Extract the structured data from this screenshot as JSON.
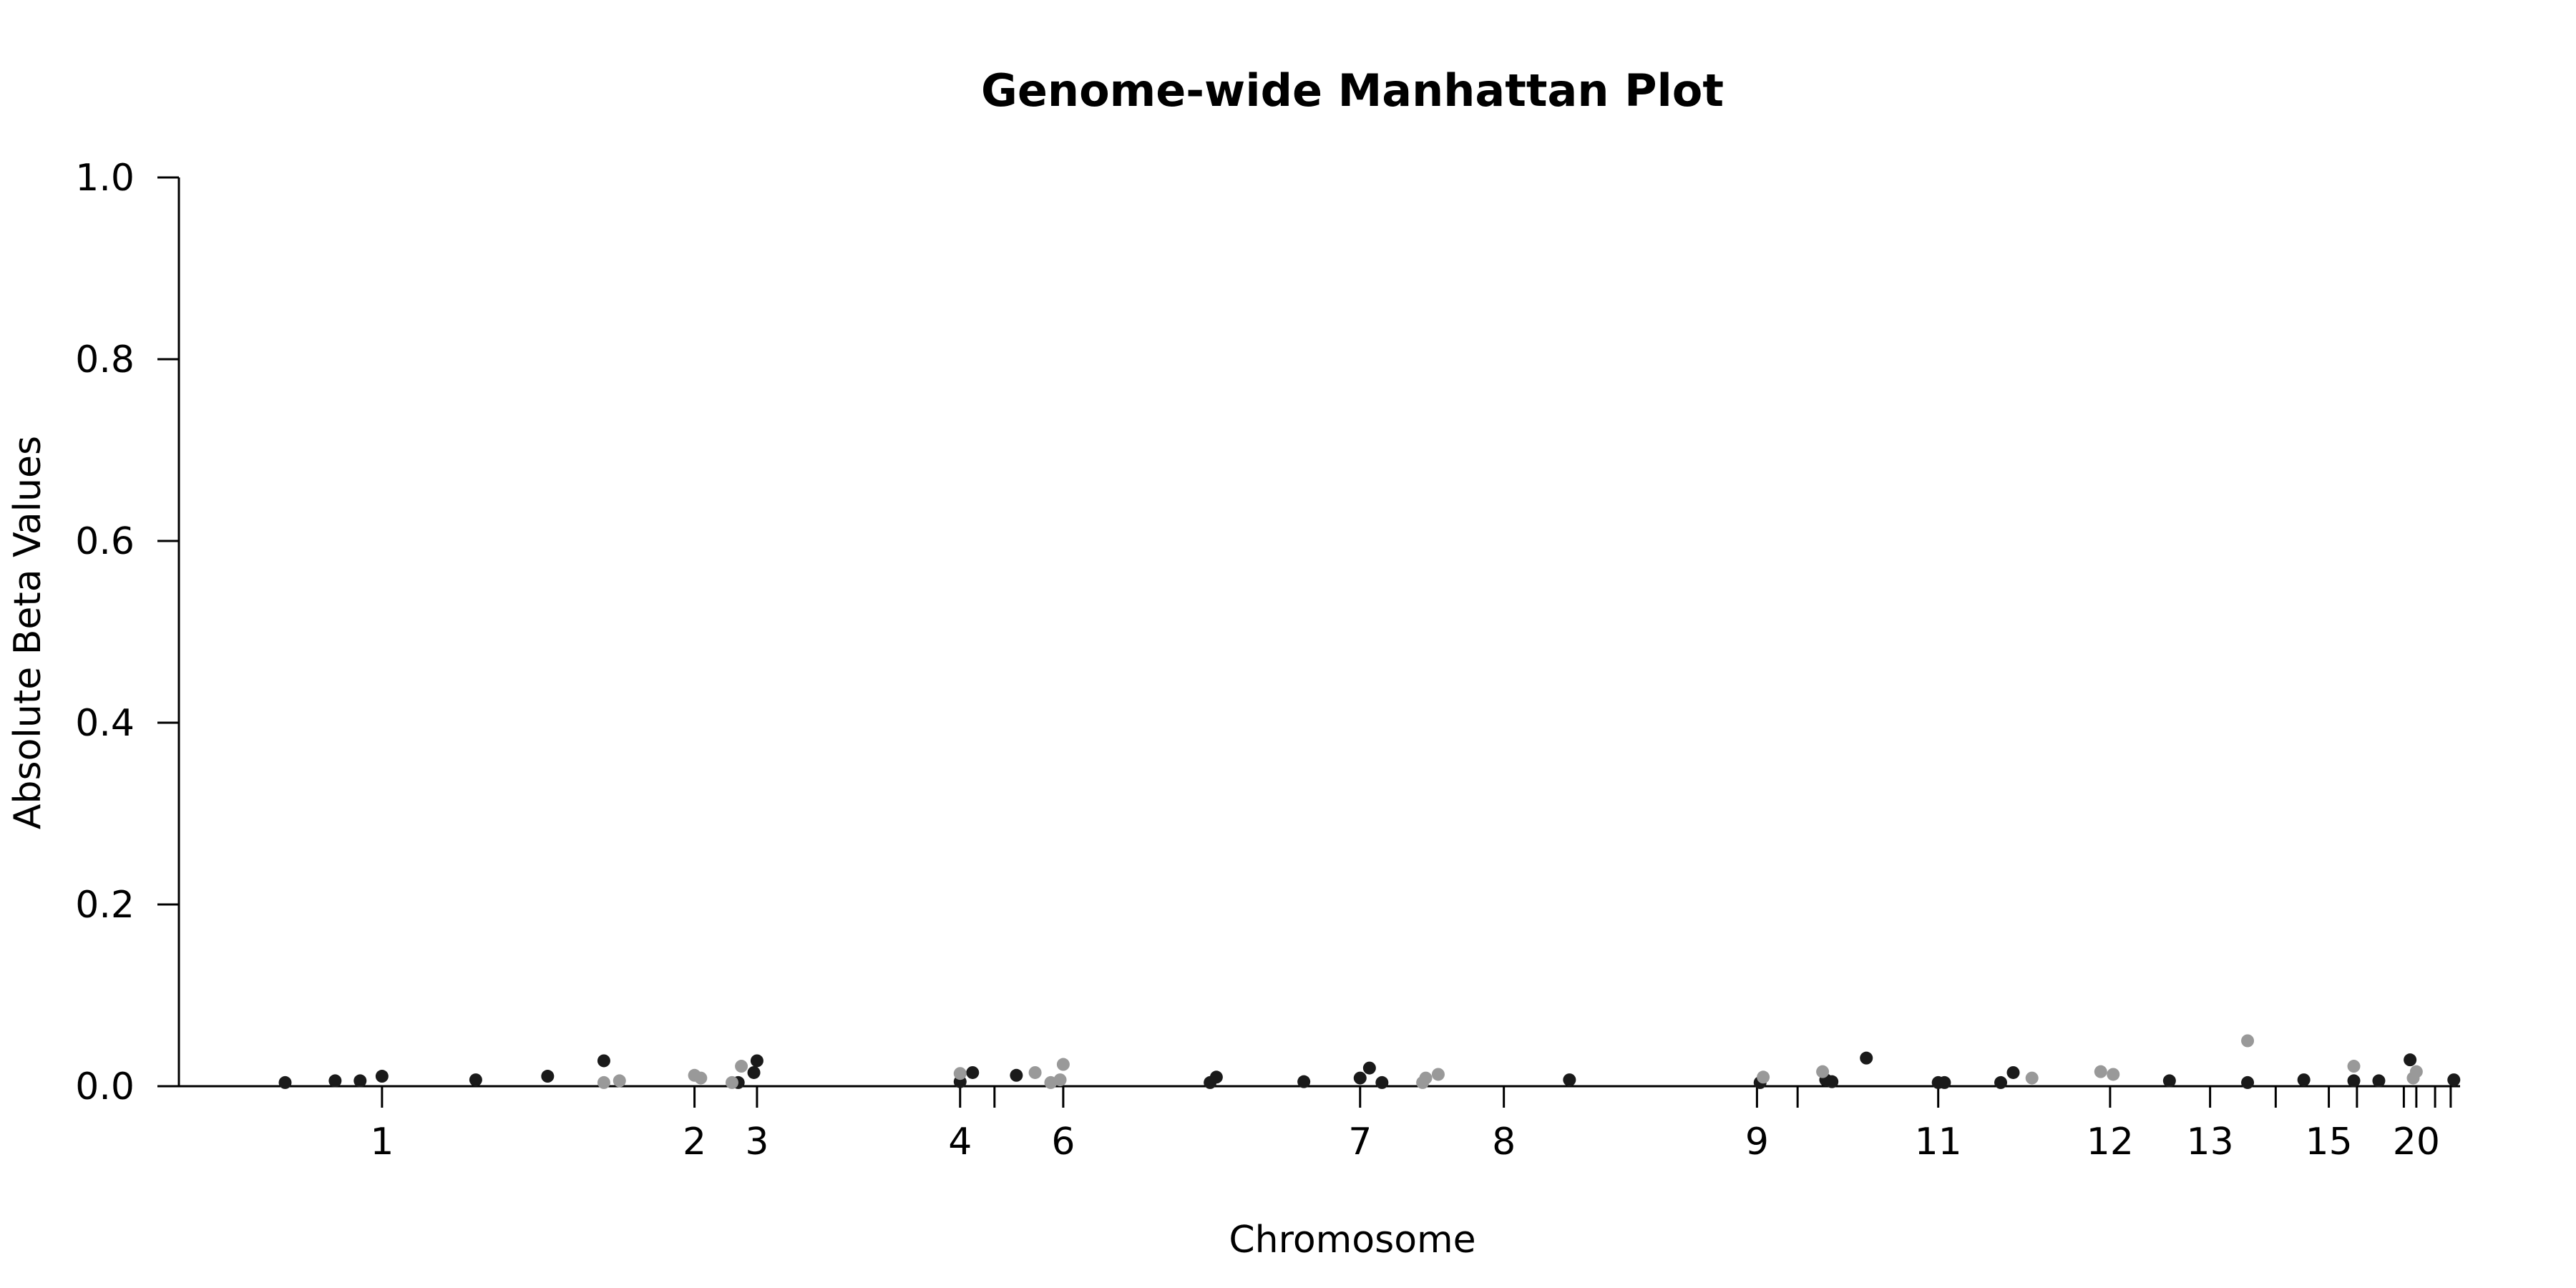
{
  "chart_data": {
    "type": "scatter",
    "title": "Genome-wide Manhattan Plot",
    "xlabel": "Chromosome",
    "ylabel": "Absolute Beta Values",
    "ylim": [
      0,
      1
    ],
    "y_ticks": [
      "0.0",
      "0.2",
      "0.4",
      "0.6",
      "0.8",
      "1.0"
    ],
    "x_ticks": [
      {
        "pos": 1.0,
        "label": "1"
      },
      {
        "pos": 2.0,
        "label": "2"
      },
      {
        "pos": 2.2,
        "label": "3"
      },
      {
        "pos": 2.85,
        "label": "4"
      },
      {
        "pos": 2.96,
        "label": ""
      },
      {
        "pos": 3.18,
        "label": "6"
      },
      {
        "pos": 4.13,
        "label": "7"
      },
      {
        "pos": 4.59,
        "label": "8"
      },
      {
        "pos": 5.4,
        "label": "9"
      },
      {
        "pos": 5.53,
        "label": ""
      },
      {
        "pos": 5.98,
        "label": "11"
      },
      {
        "pos": 6.53,
        "label": "12"
      },
      {
        "pos": 6.85,
        "label": "13"
      },
      {
        "pos": 7.06,
        "label": ""
      },
      {
        "pos": 7.23,
        "label": "15"
      },
      {
        "pos": 7.32,
        "label": ""
      },
      {
        "pos": 7.47,
        "label": ""
      },
      {
        "pos": 7.51,
        "label": "20"
      },
      {
        "pos": 7.57,
        "label": ""
      },
      {
        "pos": 7.62,
        "label": ""
      }
    ],
    "xlim": [
      0.35,
      7.65
    ],
    "grid": false,
    "colors": {
      "dark": "#1a1a1a",
      "light": "#999999"
    },
    "series": [
      {
        "color_key": "dark",
        "points": [
          [
            0.69,
            0.004
          ],
          [
            0.85,
            0.006
          ],
          [
            0.93,
            0.006
          ],
          [
            1.0,
            0.011
          ],
          [
            1.3,
            0.007
          ],
          [
            1.53,
            0.011
          ],
          [
            1.71,
            0.028
          ],
          [
            2.14,
            0.004
          ],
          [
            2.19,
            0.015
          ],
          [
            2.2,
            0.028
          ],
          [
            2.85,
            0.005
          ],
          [
            2.89,
            0.015
          ],
          [
            3.03,
            0.012
          ],
          [
            3.65,
            0.004
          ],
          [
            3.67,
            0.01
          ],
          [
            3.95,
            0.005
          ],
          [
            4.13,
            0.009
          ],
          [
            4.16,
            0.02
          ],
          [
            4.2,
            0.004
          ],
          [
            4.8,
            0.007
          ],
          [
            5.41,
            0.004
          ],
          [
            5.62,
            0.007
          ],
          [
            5.64,
            0.005
          ],
          [
            5.75,
            0.031
          ],
          [
            5.98,
            0.004
          ],
          [
            6.0,
            0.004
          ],
          [
            6.18,
            0.004
          ],
          [
            6.22,
            0.015
          ],
          [
            6.72,
            0.006
          ],
          [
            6.97,
            0.004
          ],
          [
            7.15,
            0.007
          ],
          [
            7.31,
            0.006
          ],
          [
            7.39,
            0.006
          ],
          [
            7.49,
            0.029
          ],
          [
            7.63,
            0.007
          ]
        ]
      },
      {
        "color_key": "light",
        "points": [
          [
            1.71,
            0.004
          ],
          [
            1.76,
            0.006
          ],
          [
            2.0,
            0.012
          ],
          [
            2.02,
            0.009
          ],
          [
            2.12,
            0.004
          ],
          [
            2.15,
            0.022
          ],
          [
            2.85,
            0.014
          ],
          [
            3.09,
            0.015
          ],
          [
            3.14,
            0.004
          ],
          [
            3.17,
            0.007
          ],
          [
            3.18,
            0.024
          ],
          [
            4.33,
            0.004
          ],
          [
            4.34,
            0.009
          ],
          [
            4.38,
            0.013
          ],
          [
            5.42,
            0.01
          ],
          [
            5.61,
            0.016
          ],
          [
            6.28,
            0.009
          ],
          [
            6.5,
            0.016
          ],
          [
            6.54,
            0.013
          ],
          [
            6.97,
            0.05
          ],
          [
            7.31,
            0.022
          ],
          [
            7.5,
            0.009
          ],
          [
            7.51,
            0.016
          ]
        ]
      }
    ]
  }
}
